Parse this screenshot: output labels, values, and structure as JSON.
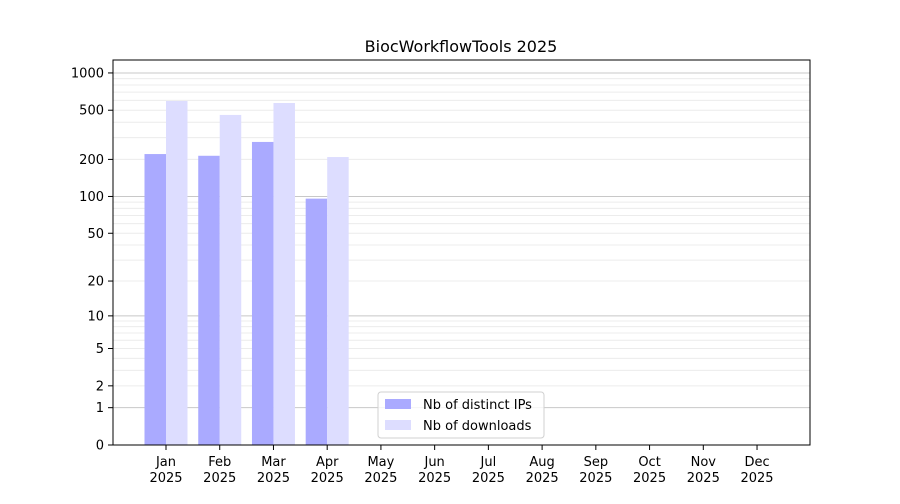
{
  "chart_data": {
    "type": "bar",
    "title": "BiocWorkflowTools 2025",
    "xlabel": "",
    "ylabel": "",
    "yscale": "log(1+x)",
    "ylim": [
      0,
      1200
    ],
    "yticks": [
      0,
      1,
      2,
      5,
      10,
      20,
      50,
      100,
      200,
      500,
      1000
    ],
    "categories": [
      "Jan\n2025",
      "Feb\n2025",
      "Mar\n2025",
      "Apr\n2025",
      "May\n2025",
      "Jun\n2025",
      "Jul\n2025",
      "Aug\n2025",
      "Sep\n2025",
      "Oct\n2025",
      "Nov\n2025",
      "Dec\n2025"
    ],
    "series": [
      {
        "name": "Nb of distinct IPs",
        "color": "#aaaaff",
        "values": [
          221,
          214,
          277,
          96,
          null,
          null,
          null,
          null,
          null,
          null,
          null,
          null
        ]
      },
      {
        "name": "Nb of downloads",
        "color": "#ddddff",
        "values": [
          594,
          458,
          572,
          209,
          null,
          null,
          null,
          null,
          null,
          null,
          null,
          null
        ]
      }
    ],
    "grid": true,
    "legend": "lower-center"
  }
}
